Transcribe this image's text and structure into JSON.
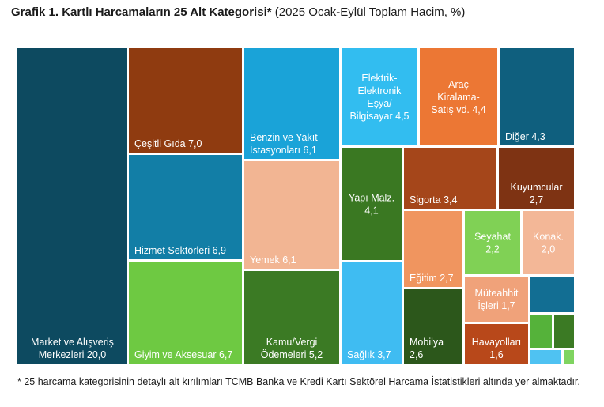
{
  "header": {
    "title_bold": "Grafik 1. Kartlı Harcamaların 25 Alt Kategorisi*",
    "title_rest": " (2025 Ocak-Eylül Toplam Hacim, %)"
  },
  "footnote": "* 25 harcama kategorisinin detaylı alt kırılımları TCMB Banka ve Kredi Kartı Sektörel Harcama İstatistikleri altında yer almaktadır.",
  "chart_data": {
    "type": "treemap",
    "unit": "%",
    "title": "Grafik 1. Kartlı Harcamaların 25 Alt Kategorisi*",
    "subtitle": "(2025 Ocak-Eylül Toplam Hacim, %)",
    "items": [
      {
        "lines": [
          "Market ve Alışveriş",
          "Merkezleri 20,0"
        ],
        "value": 20.0,
        "color": "#0d4a60",
        "text_color": "#ffffff",
        "align": "center",
        "valign": "bottom"
      },
      {
        "lines": [
          "Çeşitli Gıda 7,0"
        ],
        "value": 7.0,
        "color": "#8f3b10",
        "text_color": "#ffffff",
        "align": "left",
        "valign": "bottom"
      },
      {
        "lines": [
          "Hizmet Sektörleri 6,9"
        ],
        "value": 6.9,
        "color": "#127ea6",
        "text_color": "#ffffff",
        "align": "left",
        "valign": "bottom"
      },
      {
        "lines": [
          "Giyim ve Aksesuar 6,7"
        ],
        "value": 6.7,
        "color": "#6ec942",
        "text_color": "#ffffff",
        "align": "left",
        "valign": "bottom"
      },
      {
        "lines": [
          "Benzin ve Yakıt",
          "İstasyonları 6,1"
        ],
        "value": 6.1,
        "color": "#1aa3d8",
        "text_color": "#ffffff",
        "align": "left",
        "valign": "bottom"
      },
      {
        "lines": [
          "Yemek 6,1"
        ],
        "value": 6.1,
        "color": "#f2b593",
        "text_color": "#ffffff",
        "align": "left",
        "valign": "bottom"
      },
      {
        "lines": [
          "Kamu/Vergi",
          "Ödemeleri 5,2"
        ],
        "value": 5.2,
        "color": "#3b7a24",
        "text_color": "#ffffff",
        "align": "center",
        "valign": "bottom"
      },
      {
        "lines": [
          "Elektrik-",
          "Elektronik",
          "Eşya/",
          "Bilgisayar 4,5"
        ],
        "value": 4.5,
        "color": "#32bdf0",
        "text_color": "#ffffff",
        "align": "center",
        "valign": "center"
      },
      {
        "lines": [
          "Araç",
          "Kiralama-",
          "Satış vd. 4,4"
        ],
        "value": 4.4,
        "color": "#ec7734",
        "text_color": "#ffffff",
        "align": "center",
        "valign": "center"
      },
      {
        "lines": [
          "Diğer 4,3"
        ],
        "value": 4.3,
        "color": "#0f5f7e",
        "text_color": "#ffffff",
        "align": "left",
        "valign": "bottom"
      },
      {
        "lines": [
          "Yapı Malz.",
          "4,1"
        ],
        "value": 4.1,
        "color": "#3a7822",
        "text_color": "#ffffff",
        "align": "center",
        "valign": "center"
      },
      {
        "lines": [
          "Sağlık 3,7"
        ],
        "value": 3.7,
        "color": "#3fbcf2",
        "text_color": "#ffffff",
        "align": "left",
        "valign": "bottom"
      },
      {
        "lines": [
          "Sigorta 3,4"
        ],
        "value": 3.4,
        "color": "#a5461a",
        "text_color": "#ffffff",
        "align": "left",
        "valign": "bottom"
      },
      {
        "lines": [
          "Kuyumcular",
          "2,7"
        ],
        "value": 2.7,
        "color": "#7e3313",
        "text_color": "#ffffff",
        "align": "center",
        "valign": "bottom"
      },
      {
        "lines": [
          "Eğitim 2,7"
        ],
        "value": 2.7,
        "color": "#f0955f",
        "text_color": "#ffffff",
        "align": "left",
        "valign": "bottom"
      },
      {
        "lines": [
          "Mobilya",
          "2,6"
        ],
        "value": 2.6,
        "color": "#2c571b",
        "text_color": "#ffffff",
        "align": "left",
        "valign": "bottom"
      },
      {
        "lines": [
          "Seyahat",
          "2,2"
        ],
        "value": 2.2,
        "color": "#80d155",
        "text_color": "#ffffff",
        "align": "center",
        "valign": "center"
      },
      {
        "lines": [
          "Konak.",
          "2,0"
        ],
        "value": 2.0,
        "color": "#f3b797",
        "text_color": "#ffffff",
        "align": "center",
        "valign": "center"
      },
      {
        "lines": [
          "Müteahhit",
          "İşleri 1,7"
        ],
        "value": 1.7,
        "color": "#f0a27a",
        "text_color": "#ffffff",
        "align": "center",
        "valign": "center"
      },
      {
        "lines": [
          "Havayolları",
          "1,6"
        ],
        "value": 1.6,
        "color": "#b8481a",
        "text_color": "#ffffff",
        "align": "center",
        "valign": "bottom"
      },
      {
        "lines": [],
        "value": null,
        "color": "#126e93",
        "text_color": "#ffffff",
        "align": "center",
        "valign": "center"
      },
      {
        "lines": [],
        "value": null,
        "color": "#55b23a",
        "text_color": "#ffffff",
        "align": "center",
        "valign": "center"
      },
      {
        "lines": [],
        "value": null,
        "color": "#3b7a24",
        "text_color": "#ffffff",
        "align": "center",
        "valign": "center"
      },
      {
        "lines": [],
        "value": null,
        "color": "#4fc2f2",
        "text_color": "#ffffff",
        "align": "center",
        "valign": "center"
      },
      {
        "lines": [],
        "value": null,
        "color": "#7fd460",
        "text_color": "#ffffff",
        "align": "center",
        "valign": "center"
      }
    ]
  }
}
